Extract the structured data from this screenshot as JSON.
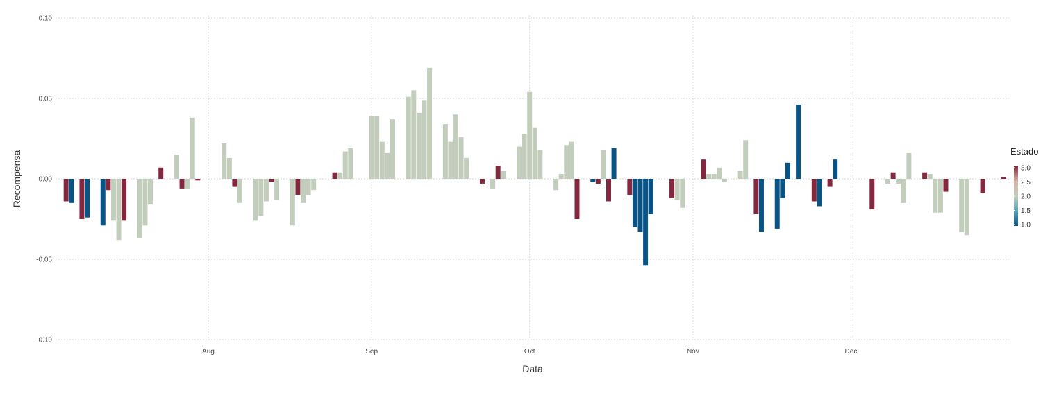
{
  "chart_data": {
    "type": "bar",
    "title": "",
    "xlabel": "Data",
    "ylabel": "Recompensa",
    "ylim": [
      -0.1,
      0.1
    ],
    "xlim": [
      "2023-07-03",
      "2023-12-31"
    ],
    "grid": true,
    "y_ticks": [
      -0.1,
      -0.05,
      0.0,
      0.05,
      0.1
    ],
    "y_tick_labels": [
      "-0.10",
      "-0.05",
      "0.00",
      "0.05",
      "0.10"
    ],
    "x_ticks": [
      {
        "date": "2023-08-01",
        "label": "Aug"
      },
      {
        "date": "2023-09-01",
        "label": "Sep"
      },
      {
        "date": "2023-10-01",
        "label": "Oct"
      },
      {
        "date": "2023-11-01",
        "label": "Nov"
      },
      {
        "date": "2023-12-01",
        "label": "Dec"
      }
    ],
    "legend": {
      "title": "Estado",
      "placement": "right",
      "ticks": [
        "1.0",
        "1.5",
        "2.0",
        "2.5",
        "3.0"
      ],
      "tick_values": [
        1.0,
        1.5,
        2.0,
        2.5,
        3.0
      ]
    },
    "colors": {
      "state_1": "#0a5385",
      "state_2": "#c2cdbc",
      "state_3": "#83283f"
    },
    "bars": [
      {
        "date": "2023-07-05",
        "value": -0.014,
        "state": 3
      },
      {
        "date": "2023-07-06",
        "value": -0.015,
        "state": 1
      },
      {
        "date": "2023-07-08",
        "value": -0.025,
        "state": 3
      },
      {
        "date": "2023-07-09",
        "value": -0.024,
        "state": 1
      },
      {
        "date": "2023-07-12",
        "value": -0.029,
        "state": 1
      },
      {
        "date": "2023-07-13",
        "value": -0.007,
        "state": 3
      },
      {
        "date": "2023-07-14",
        "value": -0.026,
        "state": 2
      },
      {
        "date": "2023-07-15",
        "value": -0.038,
        "state": 2
      },
      {
        "date": "2023-07-16",
        "value": -0.026,
        "state": 3
      },
      {
        "date": "2023-07-19",
        "value": -0.037,
        "state": 2
      },
      {
        "date": "2023-07-20",
        "value": -0.029,
        "state": 2
      },
      {
        "date": "2023-07-21",
        "value": -0.016,
        "state": 2
      },
      {
        "date": "2023-07-23",
        "value": 0.007,
        "state": 3
      },
      {
        "date": "2023-07-26",
        "value": 0.015,
        "state": 2
      },
      {
        "date": "2023-07-27",
        "value": -0.006,
        "state": 3
      },
      {
        "date": "2023-07-28",
        "value": -0.006,
        "state": 2
      },
      {
        "date": "2023-07-29",
        "value": 0.038,
        "state": 2
      },
      {
        "date": "2023-07-30",
        "value": -0.001,
        "state": 3
      },
      {
        "date": "2023-08-04",
        "value": 0.022,
        "state": 2
      },
      {
        "date": "2023-08-05",
        "value": 0.013,
        "state": 2
      },
      {
        "date": "2023-08-06",
        "value": -0.005,
        "state": 3
      },
      {
        "date": "2023-08-07",
        "value": -0.015,
        "state": 2
      },
      {
        "date": "2023-08-10",
        "value": -0.026,
        "state": 2
      },
      {
        "date": "2023-08-11",
        "value": -0.023,
        "state": 2
      },
      {
        "date": "2023-08-12",
        "value": -0.014,
        "state": 2
      },
      {
        "date": "2023-08-13",
        "value": -0.002,
        "state": 3
      },
      {
        "date": "2023-08-14",
        "value": -0.013,
        "state": 2
      },
      {
        "date": "2023-08-17",
        "value": -0.029,
        "state": 2
      },
      {
        "date": "2023-08-18",
        "value": -0.01,
        "state": 3
      },
      {
        "date": "2023-08-19",
        "value": -0.015,
        "state": 2
      },
      {
        "date": "2023-08-20",
        "value": -0.01,
        "state": 2
      },
      {
        "date": "2023-08-21",
        "value": -0.007,
        "state": 2
      },
      {
        "date": "2023-08-25",
        "value": 0.004,
        "state": 3
      },
      {
        "date": "2023-08-26",
        "value": 0.004,
        "state": 2
      },
      {
        "date": "2023-08-27",
        "value": 0.017,
        "state": 2
      },
      {
        "date": "2023-08-28",
        "value": 0.019,
        "state": 2
      },
      {
        "date": "2023-09-01",
        "value": 0.039,
        "state": 2
      },
      {
        "date": "2023-09-02",
        "value": 0.039,
        "state": 2
      },
      {
        "date": "2023-09-03",
        "value": 0.023,
        "state": 2
      },
      {
        "date": "2023-09-04",
        "value": 0.016,
        "state": 2
      },
      {
        "date": "2023-09-05",
        "value": 0.037,
        "state": 2
      },
      {
        "date": "2023-09-08",
        "value": 0.051,
        "state": 2
      },
      {
        "date": "2023-09-09",
        "value": 0.055,
        "state": 2
      },
      {
        "date": "2023-09-10",
        "value": 0.041,
        "state": 2
      },
      {
        "date": "2023-09-11",
        "value": 0.049,
        "state": 2
      },
      {
        "date": "2023-09-12",
        "value": 0.069,
        "state": 2
      },
      {
        "date": "2023-09-15",
        "value": 0.034,
        "state": 2
      },
      {
        "date": "2023-09-16",
        "value": 0.023,
        "state": 2
      },
      {
        "date": "2023-09-17",
        "value": 0.04,
        "state": 2
      },
      {
        "date": "2023-09-18",
        "value": 0.026,
        "state": 2
      },
      {
        "date": "2023-09-19",
        "value": 0.013,
        "state": 2
      },
      {
        "date": "2023-09-22",
        "value": -0.003,
        "state": 3
      },
      {
        "date": "2023-09-24",
        "value": -0.006,
        "state": 2
      },
      {
        "date": "2023-09-25",
        "value": 0.008,
        "state": 3
      },
      {
        "date": "2023-09-26",
        "value": 0.005,
        "state": 2
      },
      {
        "date": "2023-09-29",
        "value": 0.02,
        "state": 2
      },
      {
        "date": "2023-09-30",
        "value": 0.028,
        "state": 2
      },
      {
        "date": "2023-10-01",
        "value": 0.054,
        "state": 2
      },
      {
        "date": "2023-10-02",
        "value": 0.032,
        "state": 2
      },
      {
        "date": "2023-10-03",
        "value": 0.018,
        "state": 2
      },
      {
        "date": "2023-10-06",
        "value": -0.007,
        "state": 2
      },
      {
        "date": "2023-10-07",
        "value": 0.003,
        "state": 2
      },
      {
        "date": "2023-10-08",
        "value": 0.021,
        "state": 2
      },
      {
        "date": "2023-10-09",
        "value": 0.023,
        "state": 2
      },
      {
        "date": "2023-10-10",
        "value": -0.025,
        "state": 3
      },
      {
        "date": "2023-10-13",
        "value": -0.002,
        "state": 1
      },
      {
        "date": "2023-10-14",
        "value": -0.003,
        "state": 3
      },
      {
        "date": "2023-10-15",
        "value": 0.018,
        "state": 2
      },
      {
        "date": "2023-10-16",
        "value": -0.014,
        "state": 3
      },
      {
        "date": "2023-10-17",
        "value": 0.019,
        "state": 1
      },
      {
        "date": "2023-10-20",
        "value": -0.01,
        "state": 3
      },
      {
        "date": "2023-10-21",
        "value": -0.03,
        "state": 1
      },
      {
        "date": "2023-10-22",
        "value": -0.033,
        "state": 1
      },
      {
        "date": "2023-10-23",
        "value": -0.054,
        "state": 1
      },
      {
        "date": "2023-10-24",
        "value": -0.022,
        "state": 1
      },
      {
        "date": "2023-10-28",
        "value": -0.012,
        "state": 3
      },
      {
        "date": "2023-10-29",
        "value": -0.013,
        "state": 2
      },
      {
        "date": "2023-10-30",
        "value": -0.018,
        "state": 2
      },
      {
        "date": "2023-11-03",
        "value": 0.012,
        "state": 3
      },
      {
        "date": "2023-11-04",
        "value": 0.003,
        "state": 2
      },
      {
        "date": "2023-11-05",
        "value": 0.003,
        "state": 2
      },
      {
        "date": "2023-11-06",
        "value": 0.007,
        "state": 2
      },
      {
        "date": "2023-11-07",
        "value": -0.002,
        "state": 2
      },
      {
        "date": "2023-11-10",
        "value": 0.005,
        "state": 2
      },
      {
        "date": "2023-11-11",
        "value": 0.024,
        "state": 2
      },
      {
        "date": "2023-11-13",
        "value": -0.022,
        "state": 3
      },
      {
        "date": "2023-11-14",
        "value": -0.033,
        "state": 1
      },
      {
        "date": "2023-11-17",
        "value": -0.031,
        "state": 1
      },
      {
        "date": "2023-11-18",
        "value": -0.012,
        "state": 1
      },
      {
        "date": "2023-11-19",
        "value": 0.01,
        "state": 1
      },
      {
        "date": "2023-11-21",
        "value": 0.046,
        "state": 1
      },
      {
        "date": "2023-11-24",
        "value": -0.014,
        "state": 3
      },
      {
        "date": "2023-11-25",
        "value": -0.017,
        "state": 1
      },
      {
        "date": "2023-11-27",
        "value": -0.005,
        "state": 3
      },
      {
        "date": "2023-11-28",
        "value": 0.012,
        "state": 1
      },
      {
        "date": "2023-12-05",
        "value": -0.019,
        "state": 3
      },
      {
        "date": "2023-12-08",
        "value": -0.003,
        "state": 2
      },
      {
        "date": "2023-12-09",
        "value": 0.004,
        "state": 3
      },
      {
        "date": "2023-12-10",
        "value": -0.003,
        "state": 2
      },
      {
        "date": "2023-12-11",
        "value": -0.015,
        "state": 2
      },
      {
        "date": "2023-12-12",
        "value": 0.016,
        "state": 2
      },
      {
        "date": "2023-12-15",
        "value": 0.004,
        "state": 3
      },
      {
        "date": "2023-12-16",
        "value": 0.003,
        "state": 2
      },
      {
        "date": "2023-12-17",
        "value": -0.021,
        "state": 2
      },
      {
        "date": "2023-12-18",
        "value": -0.021,
        "state": 2
      },
      {
        "date": "2023-12-19",
        "value": -0.008,
        "state": 3
      },
      {
        "date": "2023-12-22",
        "value": -0.033,
        "state": 2
      },
      {
        "date": "2023-12-23",
        "value": -0.035,
        "state": 2
      },
      {
        "date": "2023-12-26",
        "value": -0.009,
        "state": 3
      },
      {
        "date": "2023-12-30",
        "value": 0.001,
        "state": 3
      }
    ]
  }
}
